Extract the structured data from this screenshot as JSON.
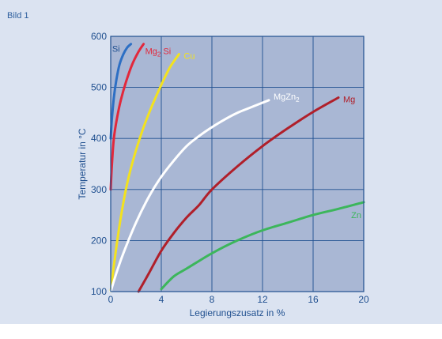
{
  "figure_label": "Bild 1",
  "chart_data": {
    "type": "line",
    "xlabel": "Legierungszusatz in %",
    "ylabel": "Temperatur in °C",
    "xlim": [
      0,
      20
    ],
    "ylim": [
      100,
      600
    ],
    "x_ticks": [
      0,
      4,
      8,
      12,
      16,
      20
    ],
    "y_ticks": [
      100,
      200,
      300,
      400,
      500,
      600
    ],
    "grid": true,
    "colors": {
      "plot_bg": "#a9b7d4",
      "grid": "#1f4f8f",
      "frame": "#1f4f8f",
      "text": "#1f4f8f"
    },
    "series": [
      {
        "name": "Si",
        "label_main": "Si",
        "label_sub": "",
        "label_tail": "",
        "color": "#2d6fc4",
        "label_color": "#1f4f8f",
        "x": [
          0,
          0.1,
          0.25,
          0.45,
          0.7,
          1.0,
          1.3,
          1.6
        ],
        "y": [
          400,
          440,
          480,
          515,
          545,
          565,
          578,
          585
        ]
      },
      {
        "name": "Mg2 Si",
        "label_main": "Mg",
        "label_sub": "2",
        "label_tail": " Si",
        "color": "#e2283b",
        "label_color": "#e2283b",
        "x": [
          0,
          0.1,
          0.25,
          0.5,
          0.8,
          1.2,
          1.7,
          2.2,
          2.6
        ],
        "y": [
          300,
          350,
          400,
          440,
          475,
          510,
          545,
          570,
          585
        ]
      },
      {
        "name": "Cu",
        "label_main": "Cu",
        "label_sub": "",
        "label_tail": "",
        "color": "#f3e21e",
        "label_color": "#f3e21e",
        "x": [
          0,
          0.3,
          0.7,
          1.2,
          1.8,
          2.5,
          3.2,
          4.0,
          4.7,
          5.4
        ],
        "y": [
          100,
          160,
          230,
          300,
          360,
          415,
          460,
          505,
          540,
          565
        ]
      },
      {
        "name": "MgZn2",
        "label_main": "MgZn",
        "label_sub": "2",
        "label_tail": "",
        "color": "#ffffff",
        "label_color": "#ffffff",
        "x": [
          0,
          0.5,
          1.0,
          2.0,
          3.0,
          4.0,
          5.0,
          6.0,
          7.0,
          8.0,
          9.0,
          10.0,
          11.0,
          12.5
        ],
        "y": [
          100,
          140,
          175,
          235,
          285,
          325,
          357,
          385,
          405,
          422,
          437,
          450,
          460,
          475
        ]
      },
      {
        "name": "Mg",
        "label_main": "Mg",
        "label_sub": "",
        "label_tail": "",
        "color": "#b01f2a",
        "label_color": "#b01f2a",
        "x": [
          2.2,
          3.0,
          4.0,
          5.0,
          6.0,
          7.0,
          8.0,
          10.0,
          12.0,
          14.0,
          16.0,
          18.0
        ],
        "y": [
          100,
          135,
          180,
          215,
          245,
          270,
          300,
          345,
          385,
          420,
          452,
          480
        ]
      },
      {
        "name": "Zn",
        "label_main": "Zn",
        "label_sub": "",
        "label_tail": "",
        "color": "#3cb65b",
        "label_color": "#3cb65b",
        "x": [
          4.0,
          5.0,
          6.0,
          8.0,
          10.0,
          12.0,
          14.0,
          16.0,
          18.0,
          20.0
        ],
        "y": [
          105,
          130,
          145,
          175,
          200,
          220,
          235,
          250,
          262,
          275
        ]
      }
    ]
  }
}
